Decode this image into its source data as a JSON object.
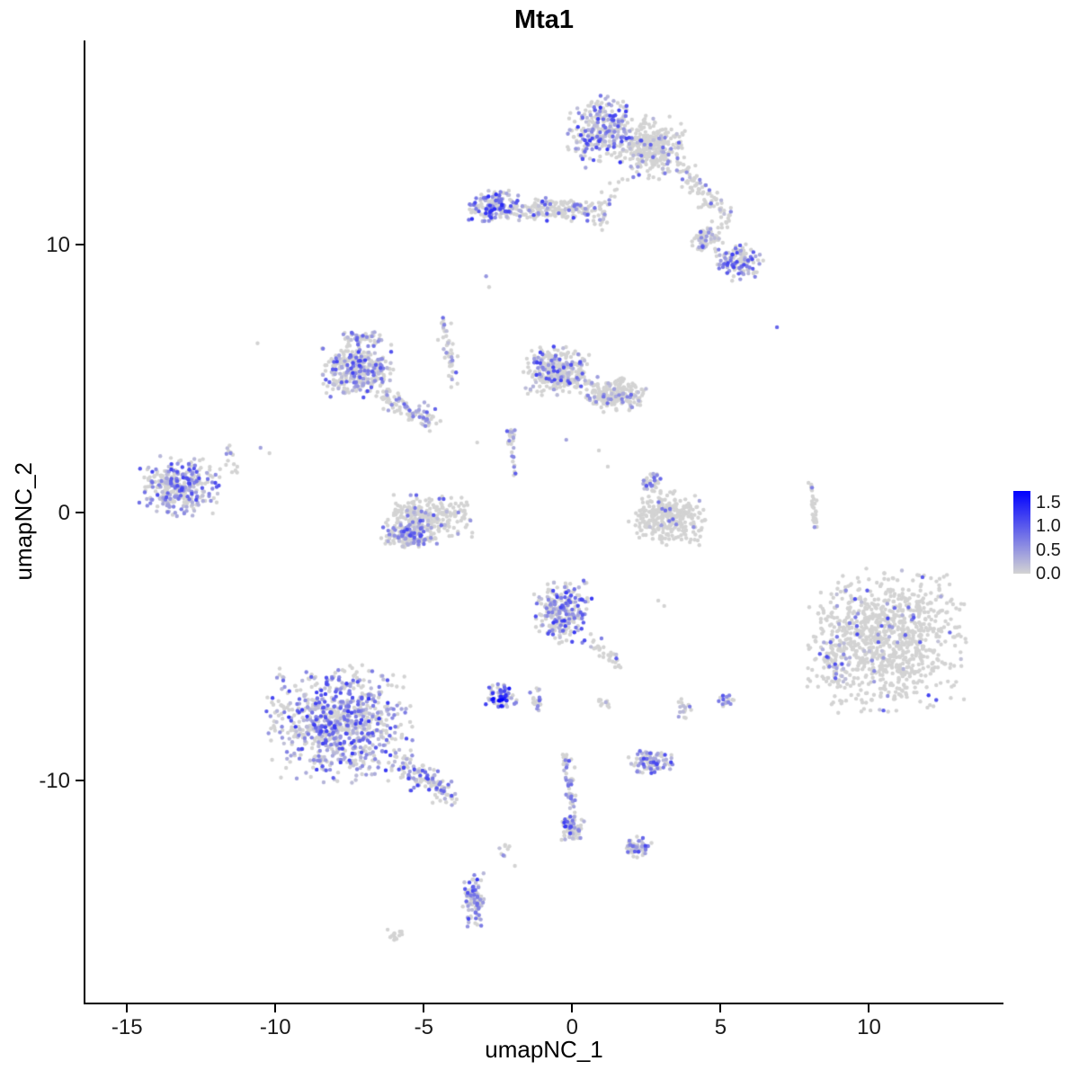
{
  "title": "Mta1",
  "chart_data": {
    "type": "scatter",
    "title": "Mta1",
    "xlabel": "umapNC_1",
    "ylabel": "umapNC_2",
    "x_ticks": [
      -15,
      -10,
      -5,
      0,
      5,
      10
    ],
    "y_ticks": [
      10,
      0,
      -10
    ],
    "x_range": [
      -16.4,
      14.5
    ],
    "y_range": [
      -18.3,
      17.6
    ],
    "grid": false,
    "point_radius": 2.2,
    "seed": 42,
    "legend": {
      "position": "right",
      "labels": [
        "1.5",
        "1.0",
        "0.5",
        "0.0"
      ],
      "values": [
        1.5,
        1.0,
        0.5,
        0.0
      ],
      "low_color": "#d3d3d3",
      "high_color": "#0000ff",
      "vmin": 0,
      "vmax": 1.75
    },
    "clusters": [
      {
        "name": "top-main-left",
        "shape": "blob",
        "cx": 1.1,
        "cy": 14.2,
        "rx": 1.3,
        "ry": 1.35,
        "n": 300,
        "expr_frac": 0.45,
        "expr_max": 1.3
      },
      {
        "name": "top-main-right",
        "shape": "blob",
        "cx": 2.7,
        "cy": 13.6,
        "rx": 1.1,
        "ry": 1.2,
        "n": 300,
        "expr_frac": 0.12,
        "expr_max": 1.0
      },
      {
        "name": "top-tail",
        "shape": "strip",
        "x1": 3.6,
        "y1": 12.9,
        "x2": 5.3,
        "y2": 10.9,
        "w": 0.45,
        "n": 90,
        "expr_frac": 0.18,
        "expr_max": 1.0
      },
      {
        "name": "top-right-upper",
        "shape": "blob",
        "cx": 4.5,
        "cy": 10.2,
        "rx": 0.6,
        "ry": 0.5,
        "n": 70,
        "expr_frac": 0.3,
        "expr_max": 1.1
      },
      {
        "name": "top-right-lower",
        "shape": "blob",
        "cx": 5.6,
        "cy": 9.3,
        "rx": 0.85,
        "ry": 0.7,
        "n": 130,
        "expr_frac": 0.45,
        "expr_max": 1.2
      },
      {
        "name": "upper-band-left",
        "shape": "blob",
        "cx": -2.6,
        "cy": 11.4,
        "rx": 0.95,
        "ry": 0.6,
        "n": 170,
        "expr_frac": 0.5,
        "expr_max": 1.4
      },
      {
        "name": "upper-band-right",
        "shape": "blob",
        "cx": -0.4,
        "cy": 11.3,
        "rx": 1.6,
        "ry": 0.45,
        "n": 170,
        "expr_frac": 0.22,
        "expr_max": 1.2
      },
      {
        "name": "band-to-top-strip",
        "shape": "strip",
        "x1": 0.9,
        "y1": 10.6,
        "x2": 1.5,
        "y2": 12.4,
        "w": 0.3,
        "n": 25,
        "expr_frac": 0.2,
        "expr_max": 1.0
      },
      {
        "name": "midleft-main",
        "shape": "blob",
        "cx": -7.2,
        "cy": 5.3,
        "rx": 1.25,
        "ry": 1.05,
        "n": 330,
        "expr_frac": 0.38,
        "expr_max": 1.2
      },
      {
        "name": "midleft-arm-down",
        "shape": "strip",
        "x1": -6.4,
        "y1": 4.3,
        "x2": -4.7,
        "y2": 3.4,
        "w": 0.35,
        "n": 90,
        "expr_frac": 0.3,
        "expr_max": 1.1
      },
      {
        "name": "midleft-arm-up",
        "shape": "blob",
        "cx": -7.0,
        "cy": 6.5,
        "rx": 0.8,
        "ry": 0.3,
        "n": 50,
        "expr_frac": 0.3,
        "expr_max": 1.1
      },
      {
        "name": "diag-strip",
        "shape": "strip",
        "x1": -4.4,
        "y1": 7.3,
        "x2": -3.9,
        "y2": 4.7,
        "w": 0.18,
        "n": 45,
        "expr_frac": 0.3,
        "expr_max": 1.1
      },
      {
        "name": "center-main",
        "shape": "blob",
        "cx": -0.5,
        "cy": 5.3,
        "rx": 1.15,
        "ry": 0.95,
        "n": 320,
        "expr_frac": 0.3,
        "expr_max": 1.2
      },
      {
        "name": "center-east",
        "shape": "blob",
        "cx": 1.4,
        "cy": 4.4,
        "rx": 1.1,
        "ry": 0.7,
        "n": 220,
        "expr_frac": 0.12,
        "expr_max": 1.0
      },
      {
        "name": "farleft",
        "shape": "blob",
        "cx": -13.2,
        "cy": 1.0,
        "rx": 1.4,
        "ry": 1.15,
        "n": 340,
        "expr_frac": 0.5,
        "expr_max": 1.2
      },
      {
        "name": "farleft-streak",
        "shape": "strip",
        "x1": -11.6,
        "y1": 2.6,
        "x2": -11.4,
        "y2": 1.4,
        "w": 0.15,
        "n": 14,
        "expr_frac": 0.25,
        "expr_max": 0.9
      },
      {
        "name": "crescent-main",
        "shape": "blob",
        "cx": -4.9,
        "cy": -0.2,
        "rx": 1.6,
        "ry": 0.85,
        "n": 260,
        "expr_frac": 0.2,
        "expr_max": 1.1
      },
      {
        "name": "crescent-bottom",
        "shape": "blob",
        "cx": -5.5,
        "cy": -0.9,
        "rx": 0.95,
        "ry": 0.45,
        "n": 130,
        "expr_frac": 0.5,
        "expr_max": 1.2
      },
      {
        "name": "thin-column",
        "shape": "strip",
        "x1": -2.1,
        "y1": 3.1,
        "x2": -1.9,
        "y2": 1.4,
        "w": 0.12,
        "n": 28,
        "expr_frac": 0.3,
        "expr_max": 1.0
      },
      {
        "name": "center-right",
        "shape": "blob",
        "cx": 3.2,
        "cy": -0.2,
        "rx": 1.3,
        "ry": 1.05,
        "n": 310,
        "expr_frac": 0.05,
        "expr_max": 0.9
      },
      {
        "name": "center-right-top",
        "shape": "blob",
        "cx": 2.7,
        "cy": 1.1,
        "rx": 0.45,
        "ry": 0.35,
        "n": 30,
        "expr_frac": 0.5,
        "expr_max": 1.1
      },
      {
        "name": "thin-line-right",
        "shape": "strip",
        "x1": 8.05,
        "y1": 1.1,
        "x2": 8.2,
        "y2": -0.6,
        "w": 0.1,
        "n": 32,
        "expr_frac": 0.06,
        "expr_max": 0.8
      },
      {
        "name": "center-low",
        "shape": "blob",
        "cx": -0.3,
        "cy": -3.7,
        "rx": 1.0,
        "ry": 1.25,
        "n": 270,
        "expr_frac": 0.42,
        "expr_max": 1.3
      },
      {
        "name": "center-low-tail",
        "shape": "strip",
        "x1": 0.7,
        "y1": -4.9,
        "x2": 1.8,
        "y2": -5.8,
        "w": 0.25,
        "n": 30,
        "expr_frac": 0.2,
        "expr_max": 1.0
      },
      {
        "name": "right-large",
        "shape": "blob",
        "cx": 10.6,
        "cy": -4.8,
        "rx": 2.7,
        "ry": 2.7,
        "n": 950,
        "expr_frac": 0.05,
        "expr_max": 1.2
      },
      {
        "name": "right-large-west-edge",
        "shape": "blob",
        "cx": 8.9,
        "cy": -5.4,
        "rx": 0.55,
        "ry": 1.3,
        "n": 60,
        "expr_frac": 0.35,
        "expr_max": 1.2
      },
      {
        "name": "bottomleft-large",
        "shape": "blob",
        "cx": -7.8,
        "cy": -7.9,
        "rx": 2.5,
        "ry": 2.2,
        "n": 850,
        "expr_frac": 0.5,
        "expr_max": 1.3
      },
      {
        "name": "bottomleft-tail",
        "shape": "strip",
        "x1": -5.8,
        "y1": -9.4,
        "x2": -4.1,
        "y2": -10.6,
        "w": 0.45,
        "n": 130,
        "expr_frac": 0.45,
        "expr_max": 1.2
      },
      {
        "name": "dark-small",
        "shape": "blob",
        "cx": -2.4,
        "cy": -6.9,
        "rx": 0.55,
        "ry": 0.5,
        "n": 70,
        "expr_frac": 0.65,
        "expr_max": 1.9
      },
      {
        "name": "dark-small-east",
        "shape": "blob",
        "cx": -1.2,
        "cy": -7.0,
        "rx": 0.25,
        "ry": 0.45,
        "n": 20,
        "expr_frac": 0.4,
        "expr_max": 1.1
      },
      {
        "name": "small-mid-low",
        "shape": "blob",
        "cx": 1.1,
        "cy": -7.2,
        "rx": 0.35,
        "ry": 0.35,
        "n": 10,
        "expr_frac": 0.3,
        "expr_max": 0.9
      },
      {
        "name": "small-south",
        "shape": "blob",
        "cx": 2.6,
        "cy": -9.3,
        "rx": 0.8,
        "ry": 0.45,
        "n": 95,
        "expr_frac": 0.5,
        "expr_max": 1.2
      },
      {
        "name": "dots-southeast-a",
        "shape": "blob",
        "cx": 3.8,
        "cy": -7.3,
        "rx": 0.3,
        "ry": 0.4,
        "n": 18,
        "expr_frac": 0.4,
        "expr_max": 1.1
      },
      {
        "name": "dots-southeast-b",
        "shape": "blob",
        "cx": 5.2,
        "cy": -7.1,
        "rx": 0.35,
        "ry": 0.3,
        "n": 18,
        "expr_frac": 0.5,
        "expr_max": 1.1
      },
      {
        "name": "vertical-streak",
        "shape": "strip",
        "x1": -0.2,
        "y1": -9.0,
        "x2": 0.0,
        "y2": -11.2,
        "w": 0.15,
        "n": 50,
        "expr_frac": 0.35,
        "expr_max": 1.2
      },
      {
        "name": "blob-low-center",
        "shape": "blob",
        "cx": 0.0,
        "cy": -11.8,
        "rx": 0.45,
        "ry": 0.5,
        "n": 75,
        "expr_frac": 0.45,
        "expr_max": 1.3
      },
      {
        "name": "small-lower-right",
        "shape": "blob",
        "cx": 2.2,
        "cy": -12.5,
        "rx": 0.5,
        "ry": 0.4,
        "n": 55,
        "expr_frac": 0.45,
        "expr_max": 1.2
      },
      {
        "name": "bottom-vertical",
        "shape": "blob",
        "cx": -3.3,
        "cy": -14.4,
        "rx": 0.4,
        "ry": 1.1,
        "n": 95,
        "expr_frac": 0.55,
        "expr_max": 1.3
      },
      {
        "name": "bottom-tiny",
        "shape": "blob",
        "cx": -6.0,
        "cy": -15.8,
        "rx": 0.35,
        "ry": 0.25,
        "n": 14,
        "expr_frac": 0.1,
        "expr_max": 0.8
      },
      {
        "name": "sparse-bottom-strip",
        "shape": "strip",
        "x1": -2.4,
        "y1": -12.4,
        "x2": -1.8,
        "y2": -13.3,
        "w": 0.2,
        "n": 9,
        "expr_frac": 0.3,
        "expr_max": 1.0
      }
    ],
    "singles": [
      {
        "x": -10.6,
        "y": 6.3,
        "v": 0
      },
      {
        "x": 6.9,
        "y": 6.9,
        "v": 0.9
      },
      {
        "x": -2.9,
        "y": 8.8,
        "v": 0.5
      },
      {
        "x": -2.8,
        "y": 8.4,
        "v": 0
      },
      {
        "x": 0.9,
        "y": 2.3,
        "v": 0
      },
      {
        "x": 1.2,
        "y": 1.7,
        "v": 0
      },
      {
        "x": -0.2,
        "y": 2.7,
        "v": 0.4
      },
      {
        "x": 2.9,
        "y": -3.3,
        "v": 0
      },
      {
        "x": 3.1,
        "y": -3.5,
        "v": 0
      },
      {
        "x": -3.2,
        "y": 2.6,
        "v": 0
      },
      {
        "x": 4.3,
        "y": 12.4,
        "v": 0.6
      },
      {
        "x": -10.5,
        "y": 2.4,
        "v": 0.4
      },
      {
        "x": -10.2,
        "y": 2.2,
        "v": 0
      }
    ]
  }
}
